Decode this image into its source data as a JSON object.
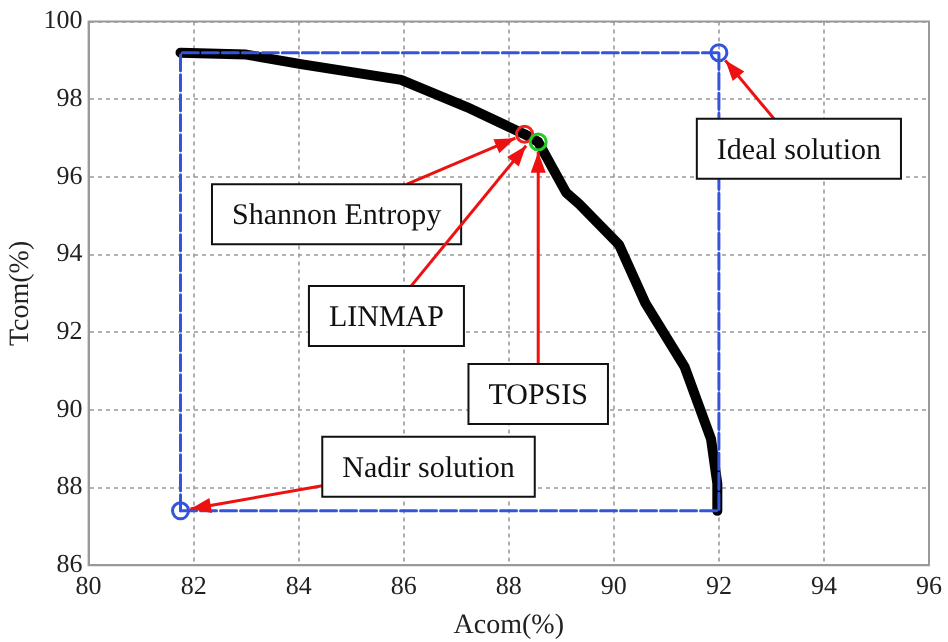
{
  "chart_data": {
    "type": "scatter",
    "xlabel": "Acom(%)",
    "ylabel": "Tcom(%)",
    "xlim": [
      80,
      96
    ],
    "xticks": [
      80,
      82,
      84,
      86,
      88,
      90,
      92,
      94,
      96
    ],
    "ylim": [
      86,
      100
    ],
    "yticks": [
      86,
      88,
      90,
      92,
      94,
      96,
      98,
      100
    ],
    "grid": true,
    "legend": false,
    "series": [
      {
        "type": "line",
        "color": "#000000",
        "marker": "none",
        "line_style": "solid",
        "x": [
          81.75,
          83,
          84.07,
          85.95,
          87.2,
          88.3,
          88.56,
          89.09,
          89.34,
          90.1,
          90.6,
          91.35,
          91.85,
          91.97,
          91.97
        ],
        "values": [
          99.2,
          99.15,
          98.9,
          98.5,
          97.8,
          97.1,
          96.9,
          95.6,
          95.3,
          94.25,
          92.75,
          91.1,
          89.25,
          88.1,
          87.4
        ]
      },
      {
        "type": "line",
        "color": "#3355dd",
        "marker": "none",
        "line_style": "dashed",
        "x": [
          81.75,
          92,
          92
        ],
        "values": [
          87.4,
          87.4,
          99.2
        ]
      },
      {
        "type": "line",
        "color": "#3355dd",
        "marker": "none",
        "line_style": "dashed",
        "x": [
          81.75,
          81.75,
          92
        ],
        "values": [
          87.4,
          99.2,
          99.2
        ]
      },
      {
        "type": "scatter",
        "color": "#3355dd",
        "marker": "circle",
        "x": [
          92,
          81.75
        ],
        "values": [
          99.2,
          87.4
        ]
      },
      {
        "type": "scatter",
        "color": "#ee2222",
        "marker": "circle",
        "x": [
          88.3
        ],
        "values": [
          97.1
        ]
      },
      {
        "type": "scatter",
        "color": "#22cc22",
        "marker": "circle",
        "x": [
          88.56
        ],
        "values": [
          96.9
        ]
      }
    ],
    "annotations": [
      {
        "text": "Ideal solution",
        "x": 92,
        "y": 99.2
      },
      {
        "text": "Shannon Entropy",
        "x": 88.3,
        "y": 97.1
      },
      {
        "text": "LINMAP",
        "x": 88.45,
        "y": 97.0
      },
      {
        "text": "TOPSIS",
        "x": 88.56,
        "y": 96.9
      },
      {
        "text": "Nadir solution",
        "x": 81.75,
        "y": 87.4
      }
    ]
  }
}
